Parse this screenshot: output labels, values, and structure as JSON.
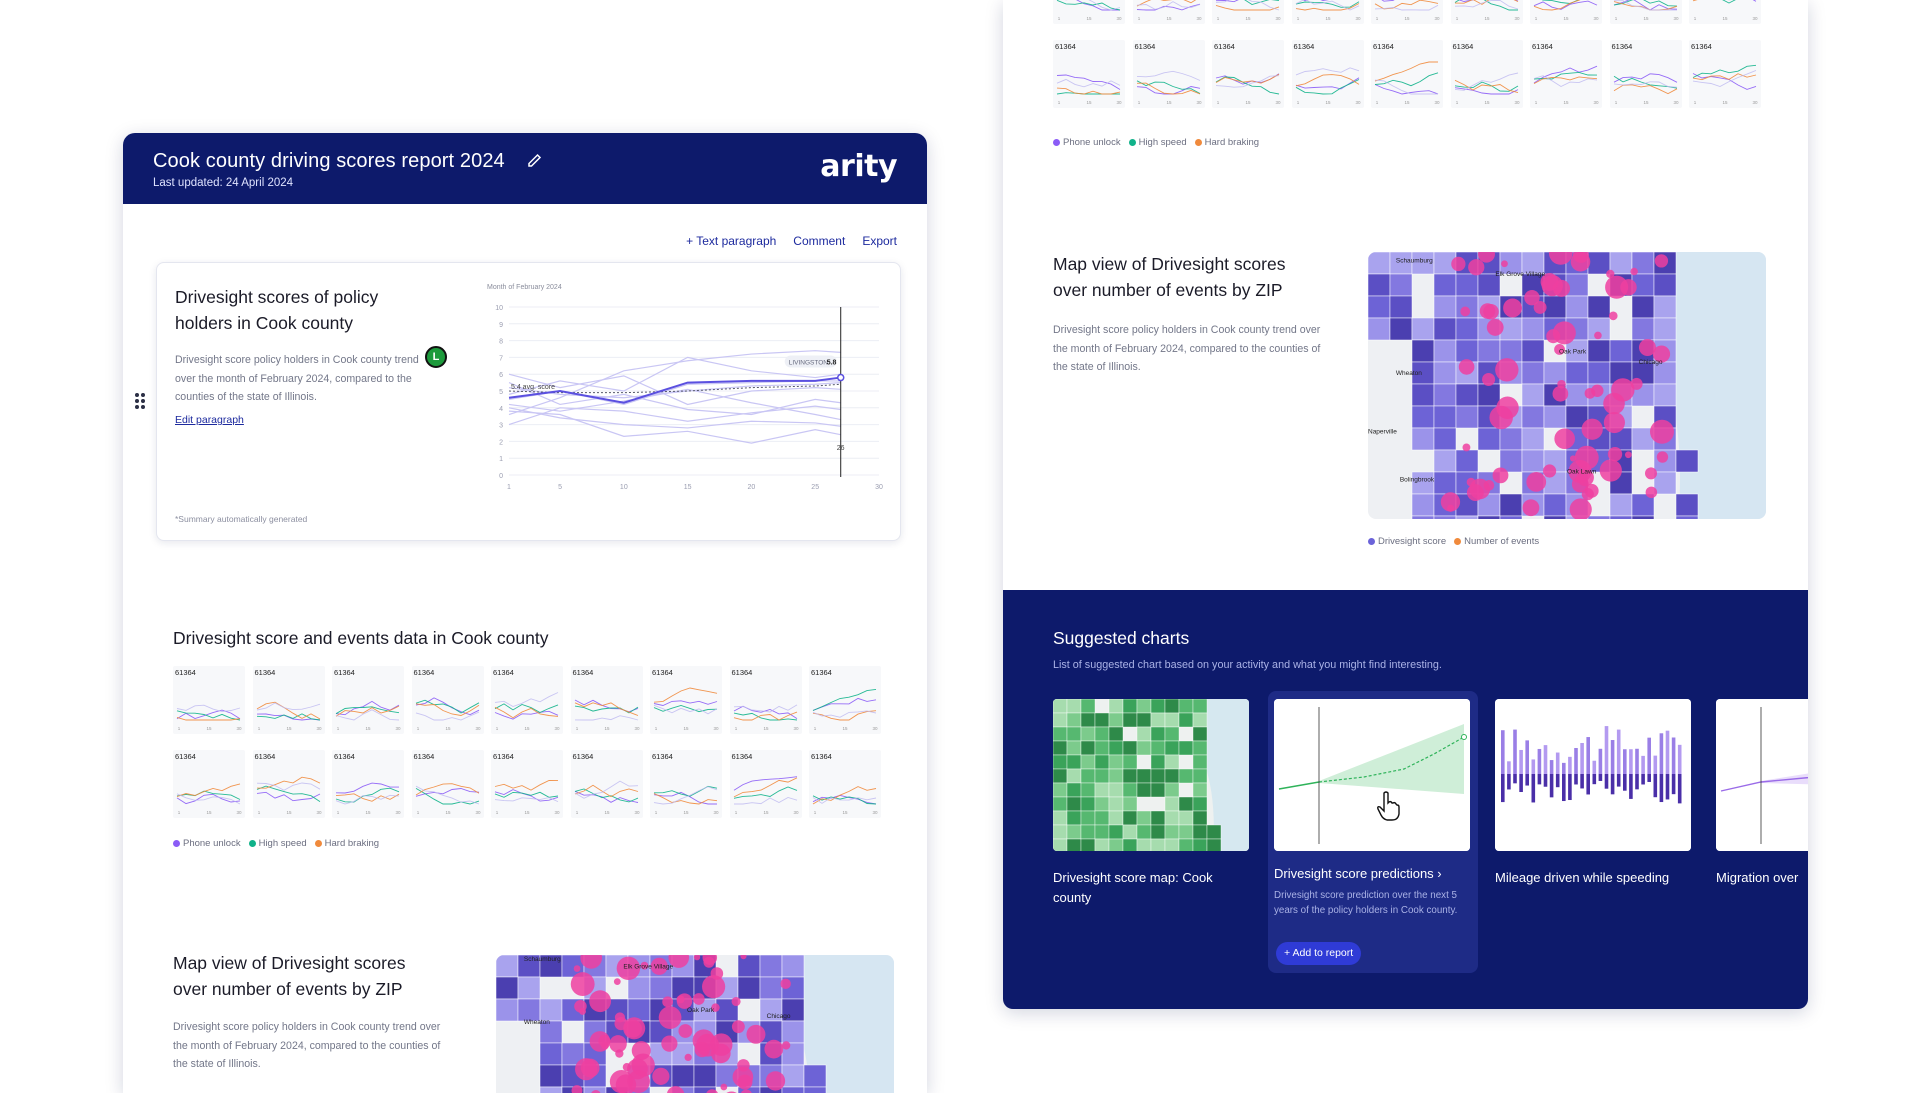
{
  "report": {
    "title": "Cook county driving scores report 2024",
    "last_updated": "Last updated: 24 April 2024",
    "brand": "arity",
    "toolbar": {
      "text_paragraph": "+ Text paragraph",
      "comment": "Comment",
      "export": "Export"
    },
    "card": {
      "title": "Drivesight scores of policy holders in Cook county",
      "description": "Drivesight score policy holders in Cook county trend over the month of February 2024, compared to the counties of the state of Illinois.",
      "edit_link": "Edit paragraph",
      "note": "*Summary automatically generated",
      "avatar_initial": "L"
    },
    "section2": {
      "title": "Drivesight score and events data in Cook county"
    },
    "section3": {
      "title": "Map view of Drivesight scores over number of events by ZIP",
      "description": "Drivesight score policy holders in Cook county trend over the month of February 2024, compared to the counties of the state of Illinois."
    },
    "map_places_left": [
      "Schaumburg",
      "Elk Grove Village",
      "Oak Park",
      "Chicago",
      "Wheaton"
    ]
  },
  "chart_data": {
    "type": "line",
    "title": "Month of February 2024",
    "x_ticks": [
      "1",
      "5",
      "10",
      "15",
      "20",
      "25",
      "30"
    ],
    "y_ticks": [
      "0",
      "1",
      "2",
      "3",
      "4",
      "5",
      "6",
      "7",
      "8",
      "9",
      "10"
    ],
    "ylim": [
      0,
      10
    ],
    "x": [
      1,
      5,
      10,
      15,
      20,
      25,
      27
    ],
    "series": [
      {
        "values": [
          4.5,
          5.0,
          4.2,
          5.4,
          5.5,
          5.6,
          5.6
        ]
      },
      {
        "values": [
          5.2,
          4.8,
          4.6,
          5.0,
          5.3,
          5.4,
          5.5
        ]
      },
      {
        "values": [
          3.6,
          4.6,
          6.2,
          6.8,
          7.2,
          7.4,
          7.3
        ]
      },
      {
        "values": [
          4.8,
          5.6,
          5.0,
          7.0,
          6.2,
          5.8,
          6.0
        ]
      },
      {
        "values": [
          6.0,
          5.2,
          5.9,
          4.2,
          5.0,
          5.2,
          5.1
        ]
      },
      {
        "values": [
          3.0,
          4.0,
          3.8,
          3.2,
          3.7,
          4.1,
          3.9
        ]
      },
      {
        "values": [
          4.0,
          3.4,
          3.0,
          2.8,
          3.2,
          3.1,
          2.9
        ]
      },
      {
        "values": [
          5.5,
          4.2,
          4.8,
          3.9,
          3.6,
          4.5,
          4.3
        ]
      },
      {
        "values": [
          3.8,
          3.6,
          2.3,
          2.6,
          1.9,
          2.7,
          2.4
        ]
      },
      {
        "values": [
          4.2,
          3.8,
          4.4,
          5.1,
          4.3,
          3.6,
          3.3
        ]
      }
    ],
    "highlight_series": {
      "values": [
        4.6,
        5.0,
        4.3,
        5.5,
        5.6,
        5.6,
        5.8
      ]
    },
    "average_series": {
      "values": [
        5.0,
        4.9,
        4.9,
        5.0,
        5.2,
        5.3,
        5.4
      ]
    },
    "annotations": {
      "avg_label": "5.4 avg. score",
      "tooltip_name": "LIVINGSTON",
      "tooltip_value": "5.8",
      "cursor_value": "26",
      "cursor_x": 27
    }
  },
  "mini_grid": {
    "zip": "61364",
    "ticks": [
      "1",
      "15",
      "30"
    ],
    "legend": [
      "Phone unlock",
      "High speed",
      "Hard braking"
    ],
    "legend_colors": [
      "#8b5cf6",
      "#10b28a",
      "#f08a3c"
    ]
  },
  "right_panel": {
    "section": {
      "title": "Map view of Drivesight scores over number of events by ZIP",
      "description": "Drivesight score policy holders in Cook county trend over the month of February 2024, compared to the counties of the state of Illinois."
    },
    "map_places": [
      "Schaumburg",
      "Elk Grove Village",
      "Oak Park",
      "Chicago",
      "Wheaton",
      "Naperville",
      "Bolingbrook",
      "Oak Lawn"
    ],
    "map_legend": [
      "Drivesight score",
      "Number of events"
    ],
    "map_legend_colors": [
      "#6b63d9",
      "#f08a3c"
    ],
    "suggested": {
      "title": "Suggested charts",
      "subtitle": "List of suggested chart based on your activity and what you might find interesting.",
      "cards": [
        {
          "label": "Drivesight score map: Cook county",
          "desc": ""
        },
        {
          "label": "Drivesight score predictions  ›",
          "desc": "Drivesight score prediction over the next 5 years of the policy holders in Cook county."
        },
        {
          "label": "Mileage driven while speeding",
          "desc": ""
        },
        {
          "label": "Migration over",
          "desc": ""
        }
      ],
      "add_button": "+ Add to report"
    }
  }
}
